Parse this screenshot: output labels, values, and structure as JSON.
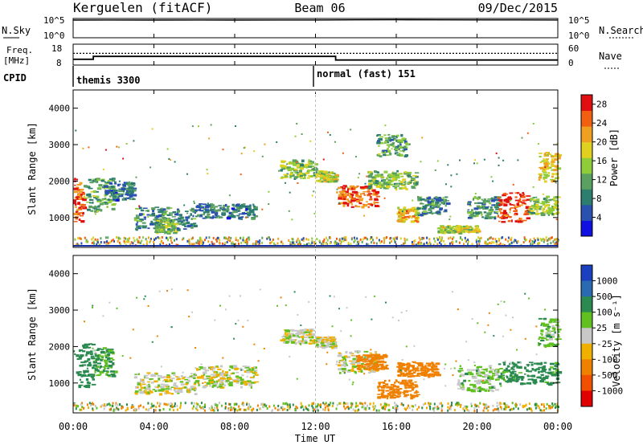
{
  "header": {
    "station": "Kerguelen (fitACF)",
    "beam": "Beam 06",
    "date": "09/Dec/2015"
  },
  "nsky_panel": {
    "left_label": "N.Sky",
    "left_ticks": [
      "10^5",
      "10^0"
    ],
    "right_label": "N.Search",
    "right_ticks": [
      "10^5",
      "10^0"
    ]
  },
  "freq_panel": {
    "left_label_line1": "Freq.",
    "left_label_line2": "[MHz]",
    "left_ticks": [
      "18",
      "8"
    ],
    "right_label": "Nave",
    "right_ticks": [
      "60",
      "0"
    ]
  },
  "cpid_panel": {
    "label": "CPID",
    "modes": [
      "themis 3300",
      "normal (fast) 151"
    ]
  },
  "time_axis": {
    "label": "Time UT",
    "ticks": [
      "00:00",
      "04:00",
      "08:00",
      "12:00",
      "16:00",
      "20:00",
      "00:00"
    ]
  },
  "power_panel": {
    "ylabel": "Slant Range [km]",
    "yticks": [
      "1000",
      "2000",
      "3000",
      "4000"
    ],
    "colorbar_label": "Power [dB]",
    "colorbar_ticks": [
      "4",
      "8",
      "12",
      "16",
      "20",
      "24",
      "28"
    ]
  },
  "velocity_panel": {
    "ylabel": "Slant Range [km]",
    "yticks": [
      "1000",
      "2000",
      "3000",
      "4000"
    ],
    "colorbar_label": "Velocity [m s⁻¹]",
    "colorbar_ticks": [
      "1000",
      "500",
      "100",
      "25",
      "-25",
      "-100",
      "-500",
      "-1000"
    ]
  },
  "chart_data": [
    {
      "type": "line",
      "title": "N.Sky",
      "x_range": [
        "00:00",
        "24:00"
      ],
      "y_scale": "log",
      "ylim": [
        1,
        100000
      ],
      "note": "sky noise roughly constant near top of panel",
      "x": [
        0,
        2,
        4,
        6,
        8,
        10,
        12,
        14,
        16,
        18,
        20,
        22,
        24
      ],
      "values": [
        60000,
        62000,
        60000,
        61000,
        60000,
        62000,
        61000,
        70000,
        72000,
        68000,
        66000,
        65000,
        64000
      ]
    },
    {
      "type": "line",
      "title": "Freq.",
      "ylabel": "[MHz]",
      "ylim": [
        8,
        18
      ],
      "x": [
        0,
        1,
        1,
        13,
        13,
        24
      ],
      "values": [
        10.6,
        10.6,
        12.1,
        12.1,
        10.2,
        10.2
      ]
    },
    {
      "type": "line",
      "title": "Nave",
      "ylim": [
        0,
        60
      ],
      "x": [
        0,
        24
      ],
      "values": [
        34,
        34
      ]
    },
    {
      "type": "heatmap",
      "title": "Power [dB]",
      "xlabel": "Time UT",
      "ylabel": "Slant Range [km]",
      "xlim": [
        0,
        24
      ],
      "ylim": [
        180,
        4500
      ],
      "clim": [
        0,
        30
      ],
      "legend": "right",
      "patches": [
        {
          "x": [
            0.0,
            0.5
          ],
          "y": [
            900,
            2100
          ],
          "v": 26
        },
        {
          "x": [
            0.5,
            2.0
          ],
          "y": [
            1200,
            2100
          ],
          "v": 12
        },
        {
          "x": [
            1.5,
            3.0
          ],
          "y": [
            1500,
            2000
          ],
          "v": 8
        },
        {
          "x": [
            3.0,
            6.0
          ],
          "y": [
            700,
            1300
          ],
          "v": 9
        },
        {
          "x": [
            4.0,
            5.0
          ],
          "y": [
            600,
            1000
          ],
          "v": 14
        },
        {
          "x": [
            6.0,
            9.0
          ],
          "y": [
            1000,
            1400
          ],
          "v": 8
        },
        {
          "x": [
            10.2,
            12.0
          ],
          "y": [
            2100,
            2600
          ],
          "v": 14
        },
        {
          "x": [
            12.0,
            13.0
          ],
          "y": [
            2000,
            2300
          ],
          "v": 16
        },
        {
          "x": [
            13.0,
            15.0
          ],
          "y": [
            1300,
            1900
          ],
          "v": 25
        },
        {
          "x": [
            14.5,
            17.0
          ],
          "y": [
            1800,
            2300
          ],
          "v": 13
        },
        {
          "x": [
            15.0,
            16.5
          ],
          "y": [
            2700,
            3300
          ],
          "v": 11
        },
        {
          "x": [
            16.0,
            17.0
          ],
          "y": [
            900,
            1300
          ],
          "v": 20
        },
        {
          "x": [
            17.0,
            18.5
          ],
          "y": [
            1100,
            1600
          ],
          "v": 9
        },
        {
          "x": [
            18.0,
            20.0
          ],
          "y": [
            600,
            800
          ],
          "v": 17
        },
        {
          "x": [
            19.5,
            21.0
          ],
          "y": [
            1000,
            1600
          ],
          "v": 10
        },
        {
          "x": [
            21.0,
            22.5
          ],
          "y": [
            900,
            1700
          ],
          "v": 28
        },
        {
          "x": [
            22.5,
            24.0
          ],
          "y": [
            1100,
            1600
          ],
          "v": 14
        },
        {
          "x": [
            23.0,
            24.0
          ],
          "y": [
            2000,
            2800
          ],
          "v": 18
        }
      ]
    },
    {
      "type": "heatmap",
      "title": "Velocity [m s⁻¹]",
      "xlabel": "Time UT",
      "ylabel": "Slant Range [km]",
      "xlim": [
        0,
        24
      ],
      "ylim": [
        180,
        4500
      ],
      "clim": [
        -1000,
        1000
      ],
      "legend": "right",
      "patches": [
        {
          "x": [
            0.0,
            1.0
          ],
          "y": [
            900,
            2100
          ],
          "v": 200
        },
        {
          "x": [
            1.0,
            2.0
          ],
          "y": [
            1200,
            2000
          ],
          "v": 100
        },
        {
          "x": [
            3.0,
            6.0
          ],
          "y": [
            700,
            1300
          ],
          "v": 0
        },
        {
          "x": [
            6.0,
            9.0
          ],
          "y": [
            900,
            1500
          ],
          "v": 0
        },
        {
          "x": [
            10.2,
            12.0
          ],
          "y": [
            2100,
            2500
          ],
          "v": 0
        },
        {
          "x": [
            12.0,
            13.0
          ],
          "y": [
            2000,
            2300
          ],
          "v": 0
        },
        {
          "x": [
            13.0,
            15.0
          ],
          "y": [
            1300,
            1900
          ],
          "v": 0
        },
        {
          "x": [
            14.0,
            15.5
          ],
          "y": [
            1400,
            1800
          ],
          "v": -200
        },
        {
          "x": [
            16.0,
            18.0
          ],
          "y": [
            1200,
            1600
          ],
          "v": -300
        },
        {
          "x": [
            15.0,
            17.0
          ],
          "y": [
            600,
            1100
          ],
          "v": -250
        },
        {
          "x": [
            19.0,
            21.0
          ],
          "y": [
            800,
            1500
          ],
          "v": 50
        },
        {
          "x": [
            21.0,
            24.0
          ],
          "y": [
            1000,
            1600
          ],
          "v": 150
        },
        {
          "x": [
            23.0,
            24.0
          ],
          "y": [
            2000,
            2800
          ],
          "v": 60
        }
      ]
    }
  ]
}
